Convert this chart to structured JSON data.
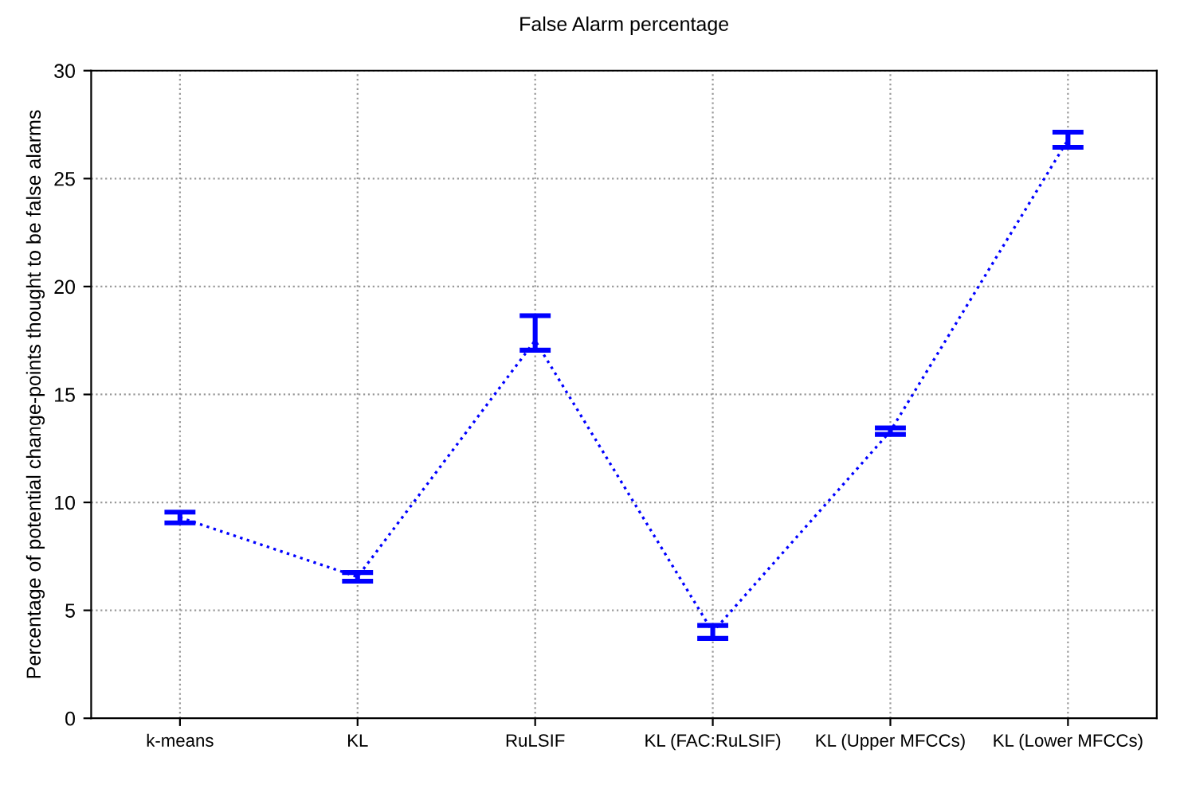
{
  "chart_data": {
    "type": "line",
    "title": "False Alarm percentage",
    "ylabel": "Percentage of potential change-points thought to be false alarms",
    "categories": [
      "k-means",
      "KL",
      "RuLSIF",
      "KL (FAC:RuLSIF)",
      "KL (Upper MFCCs)",
      "KL (Lower MFCCs)"
    ],
    "series": [
      {
        "color": "#0000ff",
        "values": [
          9.3,
          6.55,
          17.5,
          4.0,
          13.3,
          26.8
        ],
        "errors": [
          0.25,
          0.2,
          [
            17.05,
            18.65
          ],
          0.3,
          0.15,
          0.35
        ]
      }
    ],
    "ylim": [
      0,
      30
    ],
    "yticks": [
      0,
      5,
      10,
      15,
      20,
      25,
      30
    ],
    "grid": true,
    "line_style": "dotted",
    "marker": "none"
  }
}
